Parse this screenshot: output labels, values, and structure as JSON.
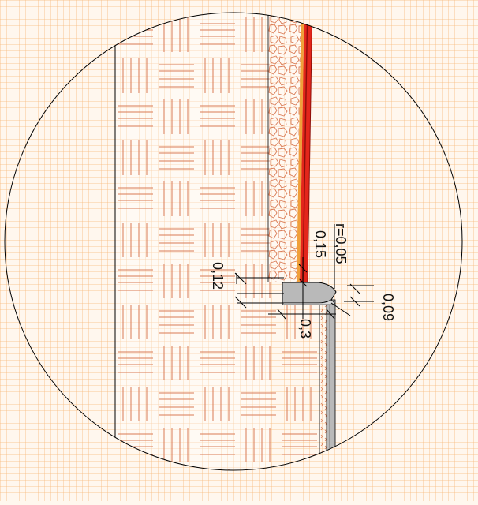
{
  "drawing": {
    "dimensions": {
      "r": "r=0,05",
      "d015": "0,15",
      "d012": "0,12",
      "d03": "0,3",
      "d009": "0,09"
    },
    "colors": {
      "background": "#fff7ee",
      "grid": "#f7b97a",
      "hatch": "#d97a54",
      "red_layer": "#e3261b",
      "dark_red": "#8e0f0a",
      "yellow_layer": "#f0a03a",
      "steel": "#b9b9b9",
      "steel_dark": "#7a7a7a",
      "line": "#000000"
    }
  }
}
